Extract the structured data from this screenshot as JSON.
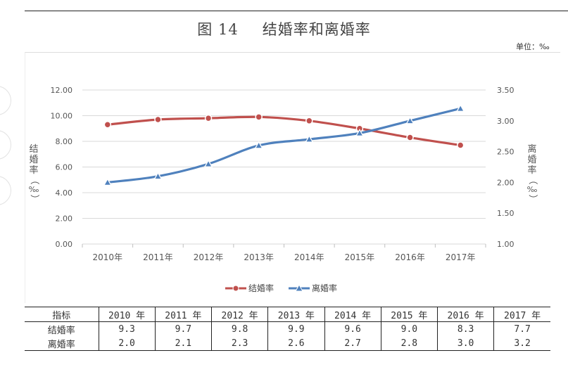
{
  "header": {
    "fig_number": "图 14",
    "title": "结婚率和离婚率",
    "unit": "单位：‰"
  },
  "chart_data": {
    "type": "line",
    "title": "结婚率和离婚率",
    "categories": [
      "2010年",
      "2011年",
      "2012年",
      "2013年",
      "2014年",
      "2015年",
      "2016年",
      "2017年"
    ],
    "y_left": {
      "label": "结婚率（‰）",
      "min": 0,
      "max": 12,
      "ticks": [
        "0.00",
        "2.00",
        "4.00",
        "6.00",
        "8.00",
        "10.00",
        "12.00"
      ]
    },
    "y_right": {
      "label": "离婚率（‰）",
      "min": 1.0,
      "max": 3.5,
      "ticks": [
        "1.00",
        "1.50",
        "2.00",
        "2.50",
        "3.00",
        "3.50"
      ]
    },
    "series": [
      {
        "name": "结婚率",
        "axis": "left",
        "color": "#c0504d",
        "marker": "circle",
        "values": [
          9.3,
          9.7,
          9.8,
          9.9,
          9.6,
          9.0,
          8.3,
          7.7
        ]
      },
      {
        "name": "离婚率",
        "axis": "right",
        "color": "#4f81bd",
        "marker": "triangle",
        "values": [
          2.0,
          2.1,
          2.3,
          2.6,
          2.7,
          2.8,
          3.0,
          3.2
        ]
      }
    ],
    "legend": "bottom-center"
  },
  "table": {
    "header": [
      "指标",
      "2010 年",
      "2011 年",
      "2012 年",
      "2013 年",
      "2014 年",
      "2015 年",
      "2016 年",
      "2017 年"
    ],
    "rows": [
      {
        "label": "结婚率",
        "values": [
          "9.3",
          "9.7",
          "9.8",
          "9.9",
          "9.6",
          "9.0",
          "8.3",
          "7.7"
        ]
      },
      {
        "label": "离婚率",
        "values": [
          "2.0",
          "2.1",
          "2.3",
          "2.6",
          "2.7",
          "2.8",
          "3.0",
          "3.2"
        ]
      }
    ]
  }
}
